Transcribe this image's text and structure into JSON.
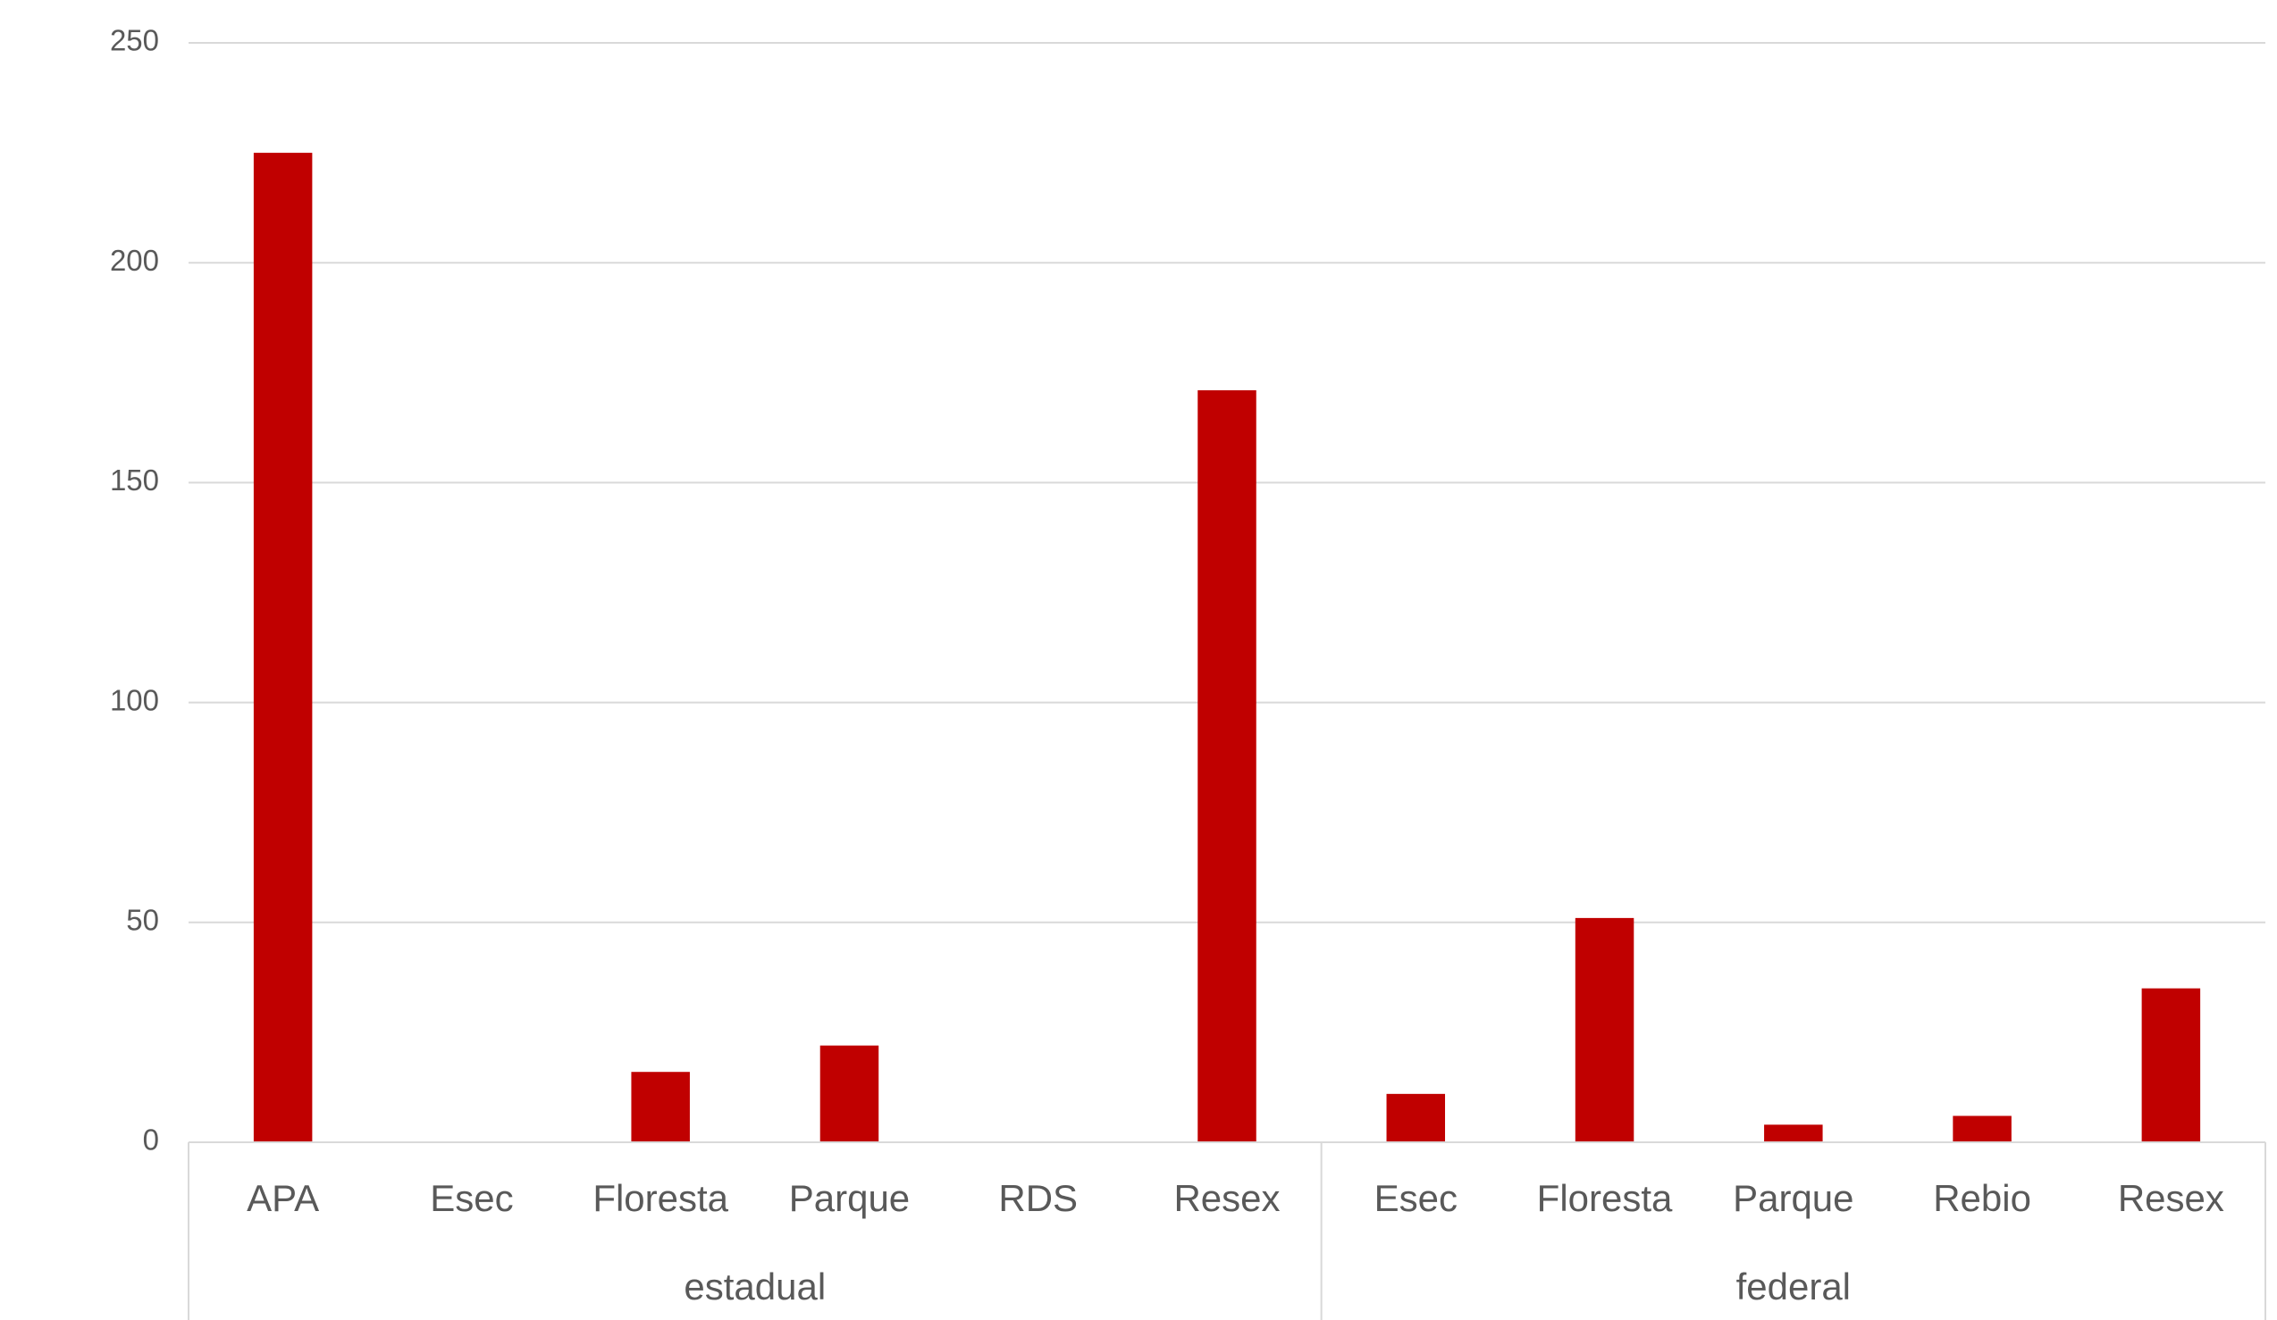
{
  "chart_data": {
    "type": "bar",
    "color": "#c00000",
    "ylim": [
      0,
      250
    ],
    "yticks": [
      0,
      50,
      100,
      150,
      200,
      250
    ],
    "grid": true,
    "groups": [
      {
        "name": "estadual",
        "categories": [
          "APA",
          "Esec",
          "Floresta",
          "Parque",
          "RDS",
          "Resex"
        ],
        "values": [
          225,
          0,
          16,
          22,
          0,
          171
        ]
      },
      {
        "name": "federal",
        "categories": [
          "Esec",
          "Floresta",
          "Parque",
          "Rebio",
          "Resex"
        ],
        "values": [
          11,
          51,
          4,
          6,
          35
        ]
      }
    ]
  }
}
